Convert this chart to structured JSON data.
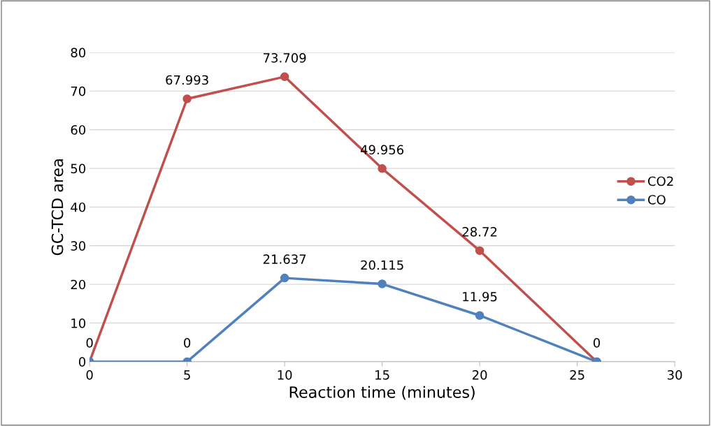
{
  "chart_data": {
    "type": "line",
    "xlabel": "Reaction time (minutes)",
    "ylabel": "GC-TCD area",
    "x": [
      0,
      5,
      10,
      15,
      20,
      26
    ],
    "series": [
      {
        "name": "CO2",
        "color": "#c0504d",
        "values": [
          0,
          67.993,
          73.709,
          49.956,
          28.72,
          0
        ]
      },
      {
        "name": "CO",
        "color": "#4f81bd",
        "values": [
          0,
          0,
          21.637,
          20.115,
          11.95,
          0
        ],
        "value_labels": [
          null,
          "0",
          "21.637",
          "20.115",
          "11.95",
          null
        ]
      }
    ],
    "xlim": [
      0,
      30
    ],
    "xticks": [
      0,
      5,
      10,
      15,
      20,
      25,
      30
    ],
    "ylim": [
      0,
      80
    ],
    "yticks": [
      0,
      10,
      20,
      30,
      40,
      50,
      60,
      70,
      80
    ],
    "grid": "y",
    "legend": "right",
    "marker": "circle",
    "line_style": "solid",
    "data_labels": true
  }
}
